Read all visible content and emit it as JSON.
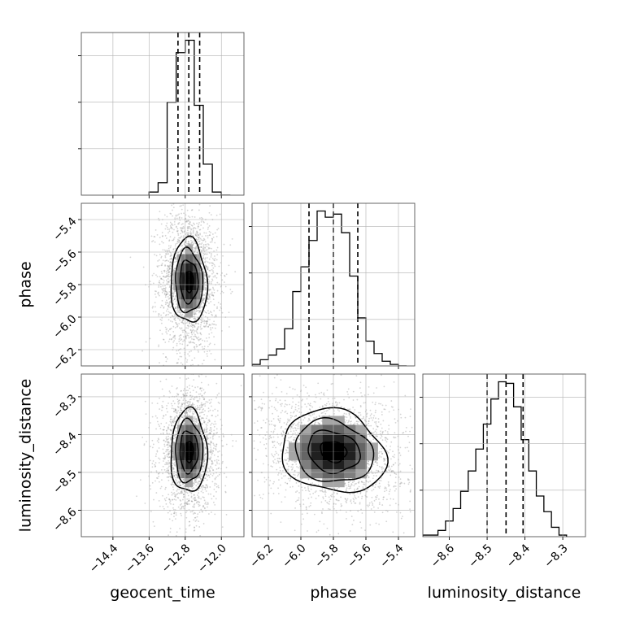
{
  "chart_data": {
    "type": "corner",
    "parameters": [
      "geocent_time",
      "phase",
      "luminosity_distance"
    ],
    "axes": {
      "geocent_time": {
        "label": "geocent_time",
        "range": [
          -15.1,
          -11.5
        ],
        "ticks": [
          -14.4,
          -13.6,
          -12.8,
          -12.0
        ],
        "tick_labels": [
          "−14.4",
          "−13.6",
          "−12.8",
          "−12.0"
        ]
      },
      "phase": {
        "label": "phase",
        "range": [
          -6.3,
          -5.3
        ],
        "ticks": [
          -6.2,
          -6.0,
          -5.8,
          -5.6,
          -5.4
        ],
        "tick_labels": [
          "−6.2",
          "−6.0",
          "−5.8",
          "−5.6",
          "−5.4"
        ]
      },
      "luminosity_distance": {
        "label": "luminosity_distance",
        "range": [
          -8.67,
          -8.24
        ],
        "ticks": [
          -8.6,
          -8.5,
          -8.4,
          -8.3
        ],
        "tick_labels": [
          "−8.6",
          "−8.5",
          "−8.4",
          "−8.3"
        ]
      }
    },
    "marginals": {
      "geocent_time": {
        "bin_edges": [
          -13.6,
          -13.4,
          -13.2,
          -13.0,
          -12.8,
          -12.6,
          -12.4,
          -12.2,
          -12.0,
          -11.8
        ],
        "counts": [
          2,
          8,
          60,
          92,
          100,
          58,
          20,
          2,
          0
        ],
        "quantiles": [
          -12.96,
          -12.72,
          -12.48
        ]
      },
      "phase": {
        "bin_edges": [
          -6.3,
          -6.25,
          -6.2,
          -6.15,
          -6.1,
          -6.05,
          -6.0,
          -5.95,
          -5.9,
          -5.85,
          -5.8,
          -5.75,
          -5.7,
          -5.65,
          -5.6,
          -5.55,
          -5.5,
          -5.45,
          -5.4,
          -5.35
        ],
        "counts": [
          1,
          4,
          7,
          11,
          24,
          48,
          64,
          81,
          100,
          96,
          98,
          86,
          58,
          31,
          16,
          8,
          3,
          1,
          0
        ],
        "quantiles": [
          -5.95,
          -5.8,
          -5.65
        ]
      },
      "luminosity_distance": {
        "bin_edges": [
          -8.67,
          -8.65,
          -8.63,
          -8.61,
          -8.59,
          -8.57,
          -8.55,
          -8.53,
          -8.51,
          -8.49,
          -8.47,
          -8.45,
          -8.43,
          -8.41,
          -8.39,
          -8.37,
          -8.35,
          -8.33,
          -8.31,
          -8.29
        ],
        "counts": [
          1,
          1,
          4,
          10,
          18,
          29,
          42,
          56,
          72,
          88,
          99,
          98,
          83,
          62,
          42,
          26,
          16,
          6,
          1
        ],
        "quantiles": [
          -8.5,
          -8.45,
          -8.405
        ]
      }
    },
    "joint": [
      {
        "x": "geocent_time",
        "y": "phase",
        "mean": [
          -12.72,
          -5.78
        ],
        "sd": [
          0.2,
          0.13
        ],
        "scatter_sd": [
          0.32,
          0.22
        ],
        "rho": -0.05,
        "contours": [
          0.5,
          1.0,
          1.5,
          2.0
        ]
      },
      {
        "x": "geocent_time",
        "y": "luminosity_distance",
        "mean": [
          -12.72,
          -8.445
        ],
        "sd": [
          0.2,
          0.055
        ],
        "scatter_sd": [
          0.32,
          0.08
        ],
        "rho": 0.0,
        "contours": [
          0.5,
          1.0,
          1.5,
          2.0
        ]
      },
      {
        "x": "phase",
        "y": "luminosity_distance",
        "mean": [
          -5.8,
          -8.445
        ],
        "sd": [
          0.16,
          0.055
        ],
        "scatter_sd": [
          0.22,
          0.08
        ],
        "rho": -0.15,
        "contours": [
          0.5,
          1.0,
          1.5,
          2.0
        ]
      }
    ],
    "grid": true,
    "colors": {
      "hist": "#000000",
      "quantile": "#000000",
      "grid": "#b0b0b0",
      "scatter": "#888888"
    }
  }
}
